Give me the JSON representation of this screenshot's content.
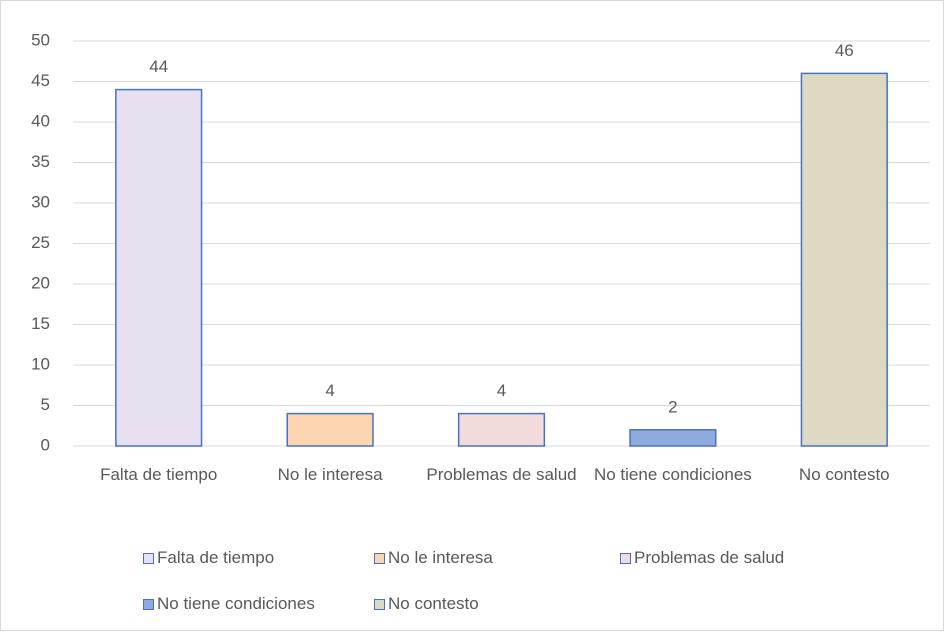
{
  "chart_data": {
    "type": "bar",
    "categories": [
      "Falta de tiempo",
      "No le interesa",
      "Problemas de salud",
      "No tiene condiciones",
      "No contesto"
    ],
    "values": [
      44,
      4,
      4,
      2,
      46
    ],
    "colors": [
      "#e6e0f0",
      "#fdd5b1",
      "#f2dcdb",
      "#8faadc",
      "#ddd9c3"
    ],
    "border_color": "#4472c4",
    "ylim": [
      0,
      50
    ],
    "yticks": [
      0,
      5,
      10,
      15,
      20,
      25,
      30,
      35,
      40,
      45,
      50
    ],
    "grid": true,
    "legend": "bottom"
  }
}
